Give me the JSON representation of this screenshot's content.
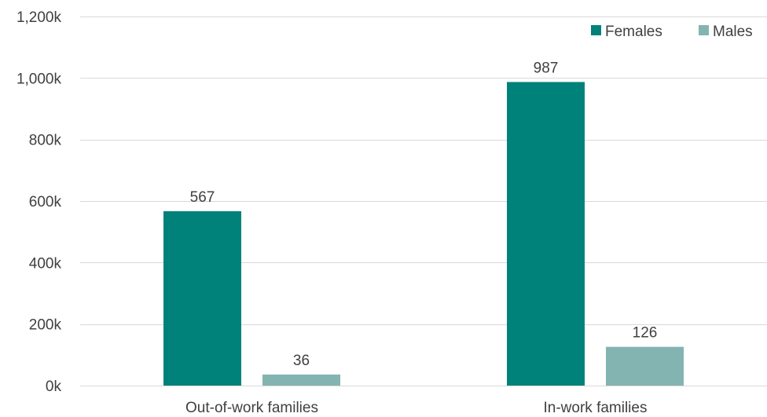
{
  "chart_data": {
    "type": "bar",
    "categories": [
      "Out-of-work families",
      "In-work families"
    ],
    "series": [
      {
        "name": "Females",
        "values": [
          567,
          987
        ],
        "labels": [
          "567",
          "987"
        ],
        "color": "#00827a"
      },
      {
        "name": "Males",
        "values": [
          36,
          126
        ],
        "labels": [
          "36",
          "126"
        ],
        "color": "#84b4b1"
      }
    ],
    "title": "",
    "xlabel": "",
    "ylabel": "",
    "ylim": [
      0,
      1200
    ],
    "yticks": [
      0,
      200,
      400,
      600,
      800,
      1000,
      1200
    ],
    "ytick_labels": [
      "0k",
      "200k",
      "400k",
      "600k",
      "800k",
      "1,000k",
      "1,200k"
    ],
    "grid": true,
    "legend_position": "top-right"
  }
}
